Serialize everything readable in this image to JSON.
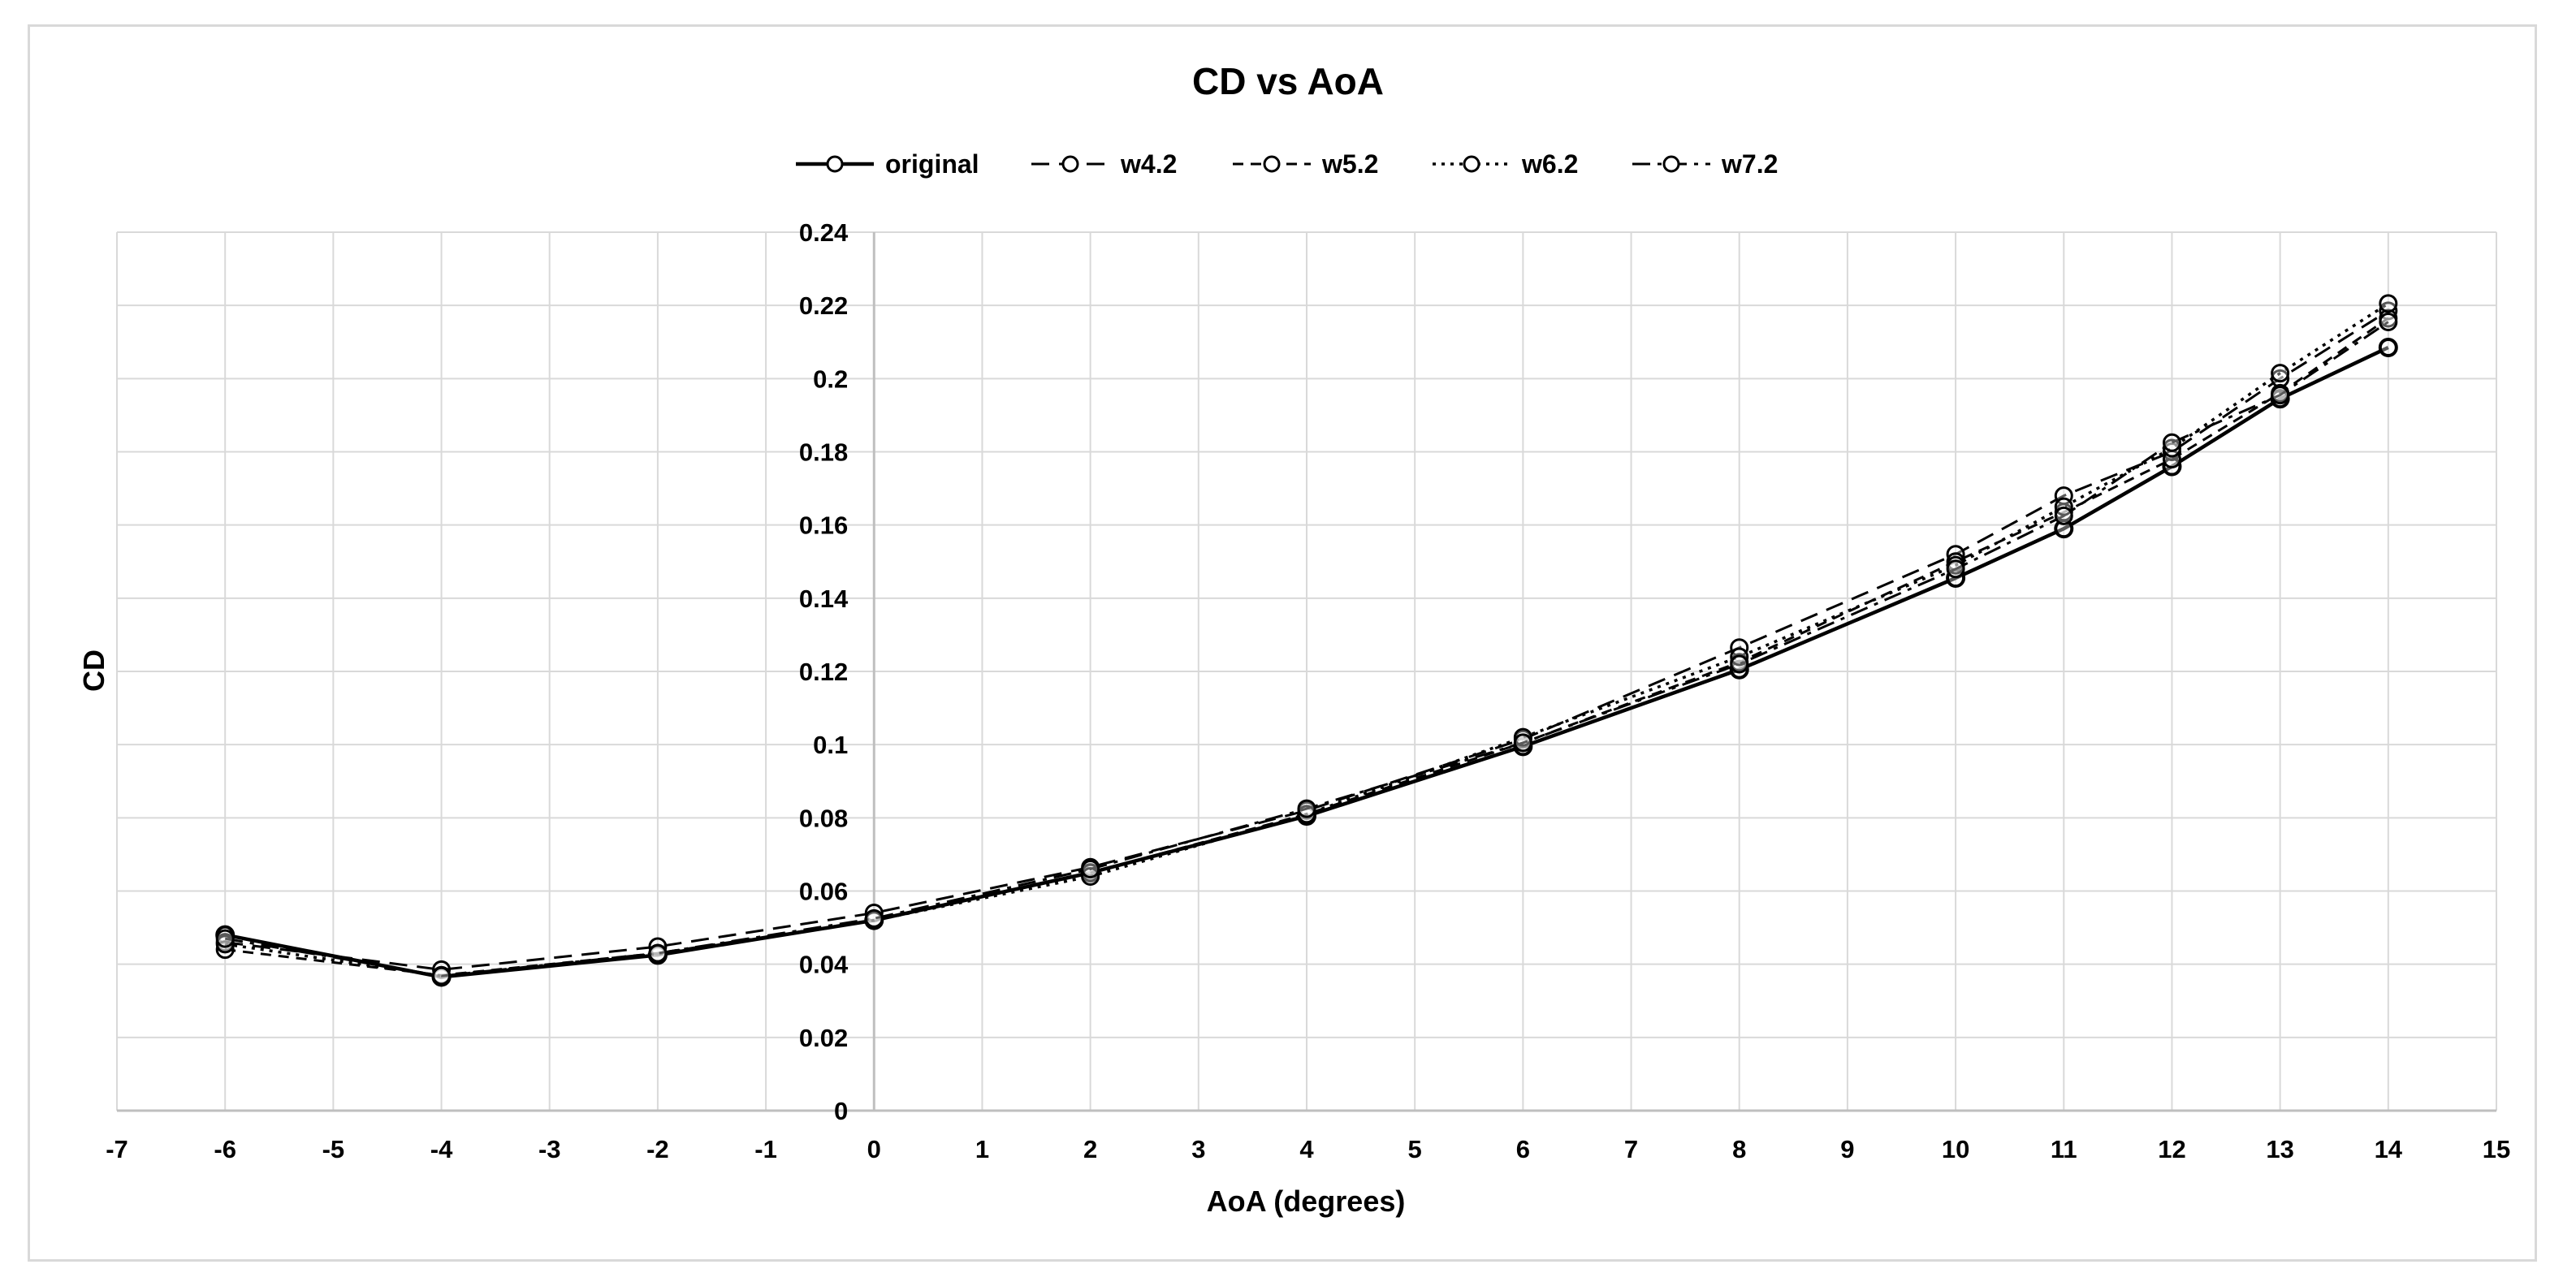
{
  "chart_data": {
    "type": "line",
    "title": "CD vs AoA",
    "xlabel": "AoA (degrees)",
    "ylabel": "CD",
    "xlim": [
      -7,
      15
    ],
    "ylim": [
      0,
      0.24
    ],
    "x_ticks": [
      "-7",
      "-6",
      "-5",
      "-4",
      "-3",
      "-2",
      "-1",
      "0",
      "1",
      "2",
      "3",
      "4",
      "5",
      "6",
      "7",
      "8",
      "9",
      "10",
      "11",
      "12",
      "13",
      "14",
      "15"
    ],
    "y_ticks": [
      "0",
      "0.02",
      "0.04",
      "0.06",
      "0.08",
      "0.1",
      "0.12",
      "0.14",
      "0.16",
      "0.18",
      "0.2",
      "0.22",
      "0.24"
    ],
    "grid": true,
    "legend_position": "top",
    "x": [
      -6,
      -4,
      -2,
      0,
      2,
      4,
      6,
      8,
      10,
      11,
      12,
      13,
      14
    ],
    "series": [
      {
        "name": "original",
        "dash": "solid",
        "width": 4.5,
        "values": [
          0.048,
          0.0365,
          0.0425,
          0.052,
          0.065,
          0.0805,
          0.0995,
          0.1205,
          0.1455,
          0.159,
          0.176,
          0.1945,
          0.2085
        ]
      },
      {
        "name": "w4.2",
        "dash": "longdash",
        "width": 3,
        "values": [
          0.046,
          0.0385,
          0.0448,
          0.054,
          0.0665,
          0.082,
          0.1015,
          0.1265,
          0.152,
          0.168,
          0.18,
          0.2,
          0.2185
        ]
      },
      {
        "name": "w5.2",
        "dash": "shortdash",
        "width": 3,
        "values": [
          0.044,
          0.037,
          0.043,
          0.052,
          0.065,
          0.081,
          0.1005,
          0.1225,
          0.15,
          0.1635,
          0.178,
          0.196,
          0.2165
        ]
      },
      {
        "name": "w6.2",
        "dash": "dot",
        "width": 3.5,
        "values": [
          0.0455,
          0.0368,
          0.0428,
          0.052,
          0.064,
          0.081,
          0.102,
          0.124,
          0.149,
          0.165,
          0.181,
          0.2015,
          0.2205
        ]
      },
      {
        "name": "w7.2",
        "dash": "dashdot",
        "width": 3,
        "values": [
          0.047,
          0.0368,
          0.043,
          0.0525,
          0.066,
          0.0825,
          0.1005,
          0.122,
          0.148,
          0.1625,
          0.1825,
          0.1955,
          0.2155
        ]
      }
    ],
    "colors": {
      "line": "#000000",
      "grid": "#d9d9d9",
      "frame": "#d9d9d9"
    }
  }
}
